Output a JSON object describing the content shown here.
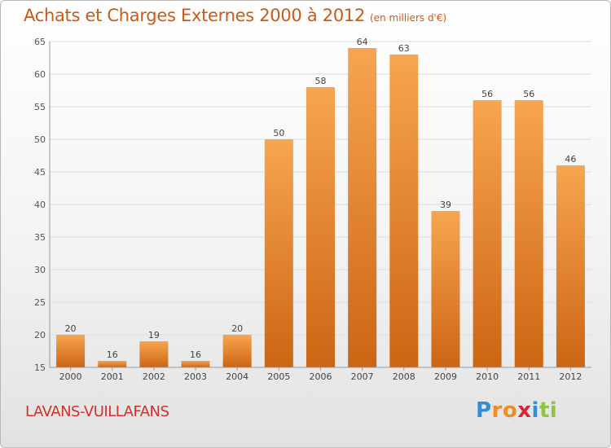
{
  "header": {
    "title": "Achats et Charges Externes 2000 à 2012",
    "subtitle": "(en milliers d'€)"
  },
  "location": "LAVANS-VUILLAFANS",
  "brand": {
    "text": "Proxiti",
    "letters": [
      "P",
      "r",
      "o",
      "x",
      "i",
      "t",
      "i"
    ],
    "colors": [
      "#2e8fd6",
      "#f28c1e",
      "#f28c1e",
      "#d6283a",
      "#2e8fd6",
      "#8cc63f",
      "#8cc63f"
    ]
  },
  "chart_data": {
    "type": "bar",
    "categories": [
      "2000",
      "2001",
      "2002",
      "2003",
      "2004",
      "2005",
      "2006",
      "2007",
      "2008",
      "2009",
      "2010",
      "2011",
      "2012"
    ],
    "values": [
      20,
      16,
      19,
      16,
      20,
      50,
      58,
      64,
      63,
      39,
      56,
      56,
      46
    ],
    "title": "Achats et Charges Externes 2000 à 2012",
    "subtitle": "(en milliers d'€)",
    "ylim": [
      15,
      65
    ],
    "yticks": [
      15,
      20,
      25,
      30,
      35,
      40,
      45,
      50,
      55,
      60,
      65
    ],
    "grid": true,
    "colors": {
      "bar_light": "#f7a550",
      "bar_dark": "#cf6a16",
      "grid": "#dcdcdc"
    }
  }
}
